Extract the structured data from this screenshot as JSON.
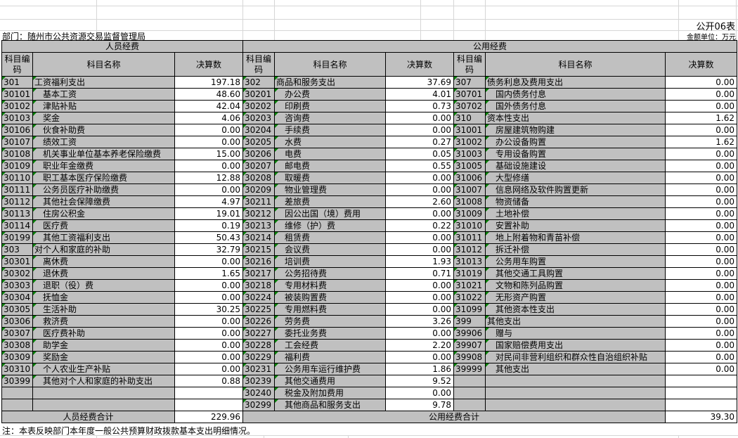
{
  "page": {
    "sheet_label": "公开06表",
    "unit_label": "金额单位：万元",
    "department_label": "部门：随州市公共资源交易监督管理局",
    "note": "注：本表反映部门本年度一般公共预算财政拨款基本支出明细情况。"
  },
  "colors": {
    "cell_fill_gray": "#c0c0c0",
    "grid_light": "#d6d6d6",
    "border_black": "#000000",
    "error_flag_green": "#008000"
  },
  "table": {
    "group_headers": [
      {
        "label": "人员经费"
      },
      {
        "label": "公用经费"
      }
    ],
    "column_headers": {
      "code": "科目编码",
      "name": "科目名称",
      "value": "决算数"
    },
    "totals": {
      "personnel": {
        "label": "人员经费合计",
        "value": "229.96"
      },
      "public": {
        "label": "公用经费合计",
        "value": "39.30"
      }
    },
    "groups": [
      {
        "rows": [
          {
            "code": "301",
            "name": "工资福利支出",
            "value": "197.18",
            "indent": false
          },
          {
            "code": "30101",
            "name": "基本工资",
            "value": "48.60",
            "indent": true
          },
          {
            "code": "30102",
            "name": "津贴补贴",
            "value": "42.04",
            "indent": true
          },
          {
            "code": "30103",
            "name": "奖金",
            "value": "4.06",
            "indent": true
          },
          {
            "code": "30106",
            "name": "伙食补助费",
            "value": "0.00",
            "indent": true
          },
          {
            "code": "30107",
            "name": "绩效工资",
            "value": "0.00",
            "indent": true
          },
          {
            "code": "30108",
            "name": "机关事业单位基本养老保险缴费",
            "value": "15.00",
            "indent": true
          },
          {
            "code": "30109",
            "name": "职业年金缴费",
            "value": "0.00",
            "indent": true
          },
          {
            "code": "30110",
            "name": "职工基本医疗保险缴费",
            "value": "12.88",
            "indent": true
          },
          {
            "code": "30111",
            "name": "公务员医疗补助缴费",
            "value": "0.00",
            "indent": true
          },
          {
            "code": "30112",
            "name": "其他社会保障缴费",
            "value": "4.97",
            "indent": true
          },
          {
            "code": "30113",
            "name": "住房公积金",
            "value": "19.01",
            "indent": true
          },
          {
            "code": "30114",
            "name": "医疗费",
            "value": "0.19",
            "indent": true
          },
          {
            "code": "30199",
            "name": "其他工资福利支出",
            "value": "50.43",
            "indent": true
          },
          {
            "code": "303",
            "name": "对个人和家庭的补助",
            "value": "32.79",
            "indent": false
          },
          {
            "code": "30301",
            "name": "离休费",
            "value": "0.00",
            "indent": true
          },
          {
            "code": "30302",
            "name": "退休费",
            "value": "1.65",
            "indent": true
          },
          {
            "code": "30303",
            "name": "退职（役）费",
            "value": "0.00",
            "indent": true
          },
          {
            "code": "30304",
            "name": "抚恤金",
            "value": "0.00",
            "indent": true
          },
          {
            "code": "30305",
            "name": "生活补助",
            "value": "30.25",
            "indent": true
          },
          {
            "code": "30306",
            "name": "救济费",
            "value": "0.00",
            "indent": true
          },
          {
            "code": "30307",
            "name": "医疗费补助",
            "value": "0.00",
            "indent": true
          },
          {
            "code": "30308",
            "name": "助学金",
            "value": "0.00",
            "indent": true
          },
          {
            "code": "30309",
            "name": "奖励金",
            "value": "0.00",
            "indent": true
          },
          {
            "code": "30310",
            "name": "个人农业生产补贴",
            "value": "0.00",
            "indent": true
          },
          {
            "code": "30399",
            "name": "其他对个人和家庭的补助支出",
            "value": "0.88",
            "indent": true
          },
          {
            "code": "",
            "name": "",
            "value": "",
            "indent": false
          },
          {
            "code": "",
            "name": "",
            "value": "",
            "indent": false
          }
        ]
      },
      {
        "rows": [
          {
            "code": "302",
            "name": "商品和服务支出",
            "value": "37.69",
            "indent": false
          },
          {
            "code": "30201",
            "name": "办公费",
            "value": "4.01",
            "indent": true
          },
          {
            "code": "30202",
            "name": "印刷费",
            "value": "0.73",
            "indent": true
          },
          {
            "code": "30203",
            "name": "咨询费",
            "value": "0.00",
            "indent": true
          },
          {
            "code": "30204",
            "name": "手续费",
            "value": "0.00",
            "indent": true
          },
          {
            "code": "30205",
            "name": "水费",
            "value": "0.27",
            "indent": true
          },
          {
            "code": "30206",
            "name": "电费",
            "value": "0.05",
            "indent": true
          },
          {
            "code": "30207",
            "name": "邮电费",
            "value": "0.55",
            "indent": true
          },
          {
            "code": "30208",
            "name": "取暖费",
            "value": "0.00",
            "indent": true
          },
          {
            "code": "30209",
            "name": "物业管理费",
            "value": "0.00",
            "indent": true
          },
          {
            "code": "30211",
            "name": "差旅费",
            "value": "2.60",
            "indent": true
          },
          {
            "code": "30212",
            "name": "因公出国（境）费用",
            "value": "0.00",
            "indent": true
          },
          {
            "code": "30213",
            "name": "维修（护）费",
            "value": "0.22",
            "indent": true
          },
          {
            "code": "30214",
            "name": "租赁费",
            "value": "0.00",
            "indent": true
          },
          {
            "code": "30215",
            "name": "会议费",
            "value": "0.00",
            "indent": true
          },
          {
            "code": "30216",
            "name": "培训费",
            "value": "1.93",
            "indent": true
          },
          {
            "code": "30217",
            "name": "公务招待费",
            "value": "0.71",
            "indent": true
          },
          {
            "code": "30218",
            "name": "专用材料费",
            "value": "0.00",
            "indent": true
          },
          {
            "code": "30224",
            "name": "被装购置费",
            "value": "0.00",
            "indent": true
          },
          {
            "code": "30225",
            "name": "专用燃料费",
            "value": "0.00",
            "indent": true
          },
          {
            "code": "30226",
            "name": "劳务费",
            "value": "3.26",
            "indent": true
          },
          {
            "code": "30227",
            "name": "委托业务费",
            "value": "0.00",
            "indent": true
          },
          {
            "code": "30228",
            "name": "工会经费",
            "value": "2.20",
            "indent": true
          },
          {
            "code": "30229",
            "name": "福利费",
            "value": "0.00",
            "indent": true
          },
          {
            "code": "30231",
            "name": "公务用车运行维护费",
            "value": "1.86",
            "indent": true
          },
          {
            "code": "30239",
            "name": "其他交通费用",
            "value": "9.52",
            "indent": true
          },
          {
            "code": "30240",
            "name": "税金及附加费用",
            "value": "0.00",
            "indent": true
          },
          {
            "code": "30299",
            "name": "其他商品和服务支出",
            "value": "9.78",
            "indent": true
          }
        ]
      },
      {
        "rows": [
          {
            "code": "307",
            "name": "债务利息及费用支出",
            "value": "0.00",
            "indent": false
          },
          {
            "code": "30701",
            "name": "国内债务付息",
            "value": "0.00",
            "indent": true
          },
          {
            "code": "30702",
            "name": "国外债务付息",
            "value": "0.00",
            "indent": true
          },
          {
            "code": "310",
            "name": "资本性支出",
            "value": "1.62",
            "indent": false
          },
          {
            "code": "31001",
            "name": "房屋建筑物购建",
            "value": "0.00",
            "indent": true
          },
          {
            "code": "31002",
            "name": "办公设备购置",
            "value": "1.62",
            "indent": true
          },
          {
            "code": "31003",
            "name": "专用设备购置",
            "value": "0.00",
            "indent": true
          },
          {
            "code": "31005",
            "name": "基础设施建设",
            "value": "0.00",
            "indent": true
          },
          {
            "code": "31006",
            "name": "大型修缮",
            "value": "0.00",
            "indent": true
          },
          {
            "code": "31007",
            "name": "信息网络及软件购置更新",
            "value": "0.00",
            "indent": true
          },
          {
            "code": "31008",
            "name": "物资储备",
            "value": "0.00",
            "indent": true
          },
          {
            "code": "31009",
            "name": "土地补偿",
            "value": "0.00",
            "indent": true
          },
          {
            "code": "31010",
            "name": "安置补助",
            "value": "0.00",
            "indent": true
          },
          {
            "code": "31011",
            "name": "地上附着物和青苗补偿",
            "value": "0.00",
            "indent": true
          },
          {
            "code": "31012",
            "name": "拆迁补偿",
            "value": "0.00",
            "indent": true
          },
          {
            "code": "31013",
            "name": "公务用车购置",
            "value": "0.00",
            "indent": true
          },
          {
            "code": "31019",
            "name": "其他交通工具购置",
            "value": "0.00",
            "indent": true
          },
          {
            "code": "31021",
            "name": "文物和陈列品购置",
            "value": "0.00",
            "indent": true
          },
          {
            "code": "31022",
            "name": "无形资产购置",
            "value": "0.00",
            "indent": true
          },
          {
            "code": "31099",
            "name": "其他资本性支出",
            "value": "0.00",
            "indent": true
          },
          {
            "code": "399",
            "name": "其他支出",
            "value": "0.00",
            "indent": false
          },
          {
            "code": "39906",
            "name": "赠与",
            "value": "0.00",
            "indent": true
          },
          {
            "code": "39907",
            "name": "国家赔偿费用支出",
            "value": "0.00",
            "indent": true
          },
          {
            "code": "39908",
            "name": "对民间非营利组织和群众性自治组织补贴",
            "value": "0.00",
            "indent": true
          },
          {
            "code": "39999",
            "name": "其他支出",
            "value": "0.00",
            "indent": true
          },
          {
            "code": "",
            "name": "",
            "value": "",
            "indent": false
          },
          {
            "code": "",
            "name": "",
            "value": "",
            "indent": false
          },
          {
            "code": "",
            "name": "",
            "value": "",
            "indent": false
          }
        ]
      }
    ]
  }
}
